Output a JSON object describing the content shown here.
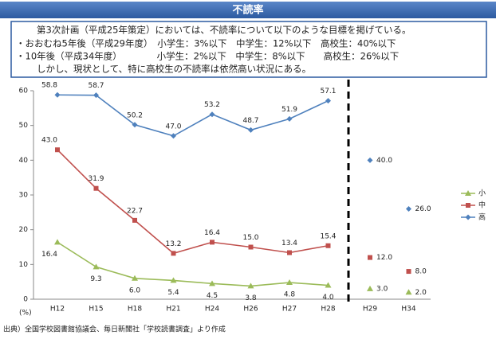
{
  "header": {
    "title": "不読率",
    "lines": [
      "第3次計画（平成25年策定）においては、不読率について以下のような目標を掲げている。",
      "・おおむね5年後（平成29年度）　小学生：3%以下　中学生：12%以下　高校生：40%以下",
      "・10年後（平成34年度）　　　　 小学生：2%以下　中学生：8%以下　　高校生：26%以下",
      "しかし、現状として、特に高校生の不読率は依然高い状況にある。"
    ]
  },
  "chart_data": {
    "type": "line",
    "categories": [
      "H12",
      "H15",
      "H18",
      "H21",
      "H24",
      "H26",
      "H27",
      "H28",
      "H29",
      "H34"
    ],
    "ylabel": "(%)",
    "ylim": [
      0,
      60
    ],
    "yticks": [
      0,
      10,
      20,
      30,
      40,
      50,
      60
    ],
    "series": [
      {
        "name": "小",
        "color": "#9bbb59",
        "values": [
          16.4,
          9.3,
          6.0,
          5.4,
          4.5,
          3.8,
          4.8,
          4.0,
          null,
          null
        ],
        "value_labels": [
          "16.4",
          "9.3",
          "6.0",
          "5.4",
          "4.5",
          "3.8",
          "4.8",
          "4.0",
          null,
          null
        ],
        "target_values": [
          null,
          null,
          null,
          null,
          null,
          null,
          null,
          null,
          3.0,
          2.0
        ],
        "target_labels": [
          null,
          null,
          null,
          null,
          null,
          null,
          null,
          null,
          "3.0",
          "2.0"
        ]
      },
      {
        "name": "中",
        "color": "#c0504d",
        "values": [
          43.0,
          31.9,
          22.7,
          13.2,
          16.4,
          15.0,
          13.4,
          15.4,
          null,
          null
        ],
        "value_labels": [
          "43.0",
          "31.9",
          "22.7",
          "13.2",
          "16.4",
          "15.0",
          "13.4",
          "15.4",
          null,
          null
        ],
        "target_values": [
          null,
          null,
          null,
          null,
          null,
          null,
          null,
          null,
          12.0,
          8.0
        ],
        "target_labels": [
          null,
          null,
          null,
          null,
          null,
          null,
          null,
          null,
          "12.0",
          "8.0"
        ]
      },
      {
        "name": "高",
        "color": "#4f81bd",
        "values": [
          58.8,
          58.7,
          50.2,
          47.0,
          53.2,
          48.7,
          51.9,
          57.1,
          null,
          null
        ],
        "value_labels": [
          "58.8",
          "58.7",
          "50.2",
          "47.0",
          "53.2",
          "48.7",
          "51.9",
          "57.1",
          null,
          null
        ],
        "target_values": [
          null,
          null,
          null,
          null,
          null,
          null,
          null,
          null,
          40.0,
          26.0
        ],
        "target_labels": [
          null,
          null,
          null,
          null,
          null,
          null,
          null,
          null,
          "40.0",
          "26.0"
        ]
      }
    ],
    "legend": "right"
  },
  "source": "出典）全国学校図書館協議会、毎日新聞社「学校読書調査」より作成"
}
